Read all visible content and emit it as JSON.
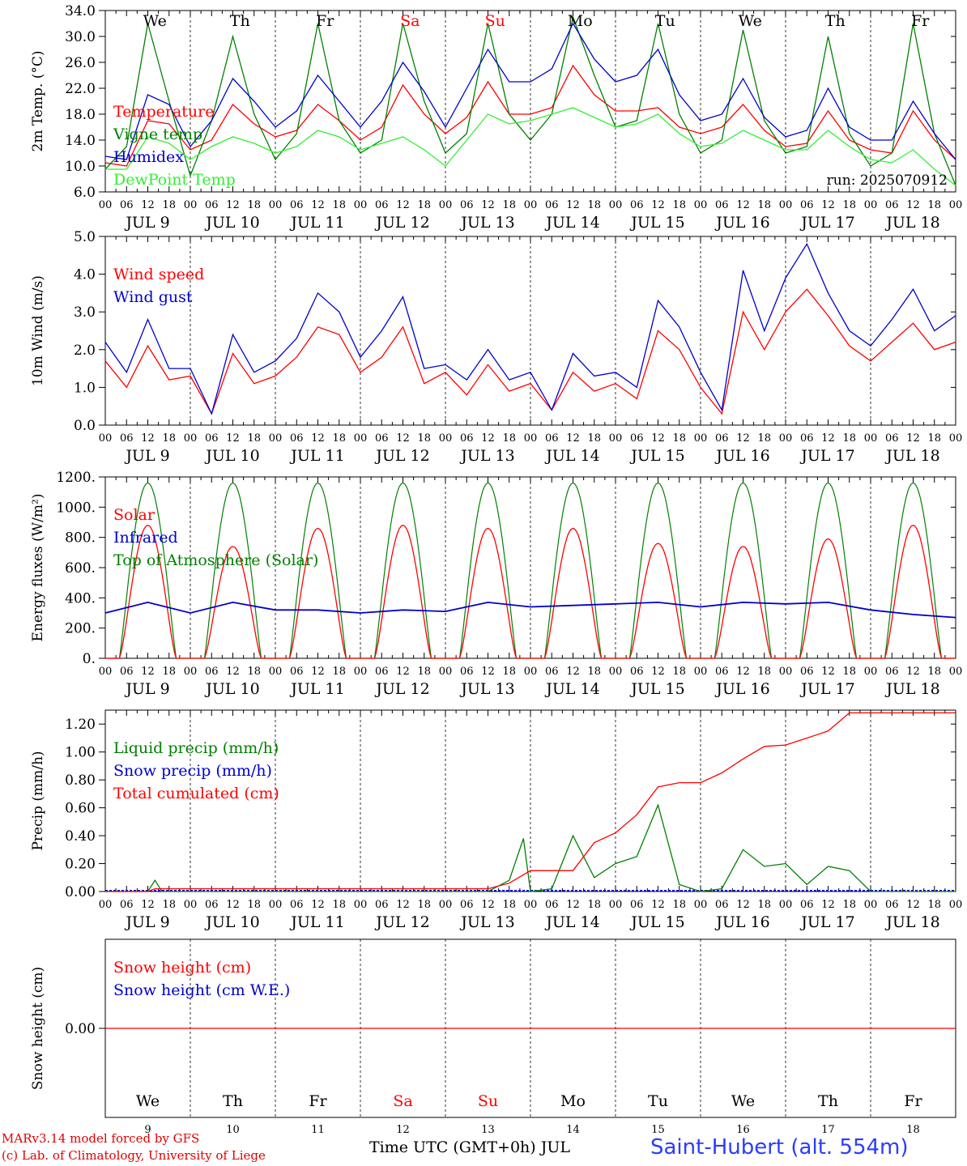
{
  "meta": {
    "day_labels": [
      "We",
      "Th",
      "Fr",
      "Sa",
      "Su",
      "Mo",
      "Tu",
      "We",
      "Th",
      "Fr"
    ],
    "weekend_color": "#ff0000",
    "weekend_days": [
      "Sa",
      "Su"
    ],
    "date_labels": [
      "JUL  9",
      "JUL 10",
      "JUL 11",
      "JUL 12",
      "JUL 13",
      "JUL 14",
      "JUL 15",
      "JUL 16",
      "JUL 17",
      "JUL 18"
    ],
    "hour_ticks": [
      "00",
      "06",
      "12",
      "18"
    ],
    "run_label": "run: 2025070912",
    "footer_model": "MARv3.14 model forced by GFS",
    "footer_lab": "(c) Lab. of Climatology, University of Liege",
    "footer_time": "Time UTC (GMT+0h) JUL",
    "footer_station": "Saint-Hubert (alt. 554m)",
    "bottom_day_numbers": [
      "9",
      "10",
      "11",
      "12",
      "13",
      "14",
      "15",
      "16",
      "17",
      "18"
    ]
  },
  "chart_data": [
    {
      "type": "line",
      "ylabel": "2m Temp. (°C)",
      "ylim": [
        6.0,
        34.0
      ],
      "yticks": [
        "6.0",
        "10.0",
        "14.0",
        "18.0",
        "22.0",
        "26.0",
        "30.0",
        "34.0"
      ],
      "x_hours": [
        0,
        6,
        12,
        18,
        24,
        30,
        36,
        42,
        48,
        54,
        60,
        66,
        72,
        78,
        84,
        90,
        96,
        102,
        108,
        114,
        120,
        126,
        132,
        138,
        144,
        150,
        156,
        162,
        168,
        174,
        180,
        186,
        192,
        198,
        204,
        210,
        216,
        222,
        228,
        234,
        240
      ],
      "series": [
        {
          "name": "Temperature",
          "color": "#ff0000",
          "values": [
            10.5,
            10.0,
            17.0,
            16.5,
            12.5,
            14.0,
            19.5,
            16.5,
            14.5,
            15.5,
            19.5,
            17.0,
            14.0,
            16.0,
            22.5,
            18.0,
            15.0,
            17.5,
            23.0,
            18.0,
            18.0,
            19.0,
            25.5,
            21.0,
            18.5,
            18.5,
            19.0,
            16.0,
            15.0,
            16.0,
            19.5,
            15.5,
            13.0,
            13.5,
            18.5,
            14.0,
            12.5,
            12.0,
            18.5,
            14.0,
            11.0
          ]
        },
        {
          "name": "Vigne temp",
          "color": "#008000",
          "values": [
            9.5,
            13.0,
            32.0,
            20.0,
            8.5,
            17.0,
            30.0,
            18.0,
            11.0,
            15.0,
            32.0,
            17.0,
            12.0,
            14.0,
            32.0,
            20.0,
            12.0,
            15.0,
            32.0,
            18.0,
            14.0,
            18.0,
            33.0,
            24.0,
            16.0,
            17.0,
            32.0,
            18.0,
            12.0,
            14.0,
            31.0,
            17.0,
            12.0,
            13.0,
            30.0,
            15.0,
            10.0,
            12.0,
            32.0,
            15.0,
            7.0
          ]
        },
        {
          "name": "Humidex",
          "color": "#0000cc",
          "values": [
            11.5,
            11.0,
            21.0,
            19.5,
            13.0,
            17.0,
            23.5,
            20.0,
            16.0,
            18.5,
            24.0,
            20.0,
            16.0,
            20.0,
            26.0,
            21.5,
            16.0,
            22.0,
            28.0,
            23.0,
            23.0,
            25.0,
            32.0,
            26.5,
            23.0,
            24.0,
            28.0,
            21.0,
            17.0,
            18.0,
            23.5,
            17.5,
            14.5,
            15.5,
            22.0,
            16.0,
            14.0,
            14.0,
            20.0,
            15.0,
            11.0
          ]
        },
        {
          "name": "DewPoint Temp",
          "color": "#33ee33",
          "values": [
            9.5,
            9.5,
            14.5,
            13.5,
            11.0,
            13.0,
            14.5,
            13.5,
            12.0,
            13.0,
            15.5,
            14.5,
            12.5,
            13.5,
            14.5,
            12.5,
            10.0,
            14.0,
            18.0,
            16.5,
            17.0,
            18.0,
            19.0,
            17.5,
            16.0,
            16.5,
            18.0,
            15.0,
            13.0,
            13.5,
            15.5,
            14.0,
            12.5,
            12.5,
            15.5,
            13.0,
            11.0,
            10.5,
            12.5,
            9.5,
            7.0
          ]
        }
      ]
    },
    {
      "type": "line",
      "ylabel": "10m Wind (m/s)",
      "ylim": [
        0.0,
        5.0
      ],
      "yticks": [
        "0.0",
        "1.0",
        "2.0",
        "3.0",
        "4.0",
        "5.0"
      ],
      "x_hours": [
        0,
        6,
        12,
        18,
        24,
        30,
        36,
        42,
        48,
        54,
        60,
        66,
        72,
        78,
        84,
        90,
        96,
        102,
        108,
        114,
        120,
        126,
        132,
        138,
        144,
        150,
        156,
        162,
        168,
        174,
        180,
        186,
        192,
        198,
        204,
        210,
        216,
        222,
        228,
        234,
        240
      ],
      "series": [
        {
          "name": "Wind speed",
          "color": "#ff0000",
          "values": [
            1.7,
            1.0,
            2.1,
            1.2,
            1.3,
            0.3,
            1.9,
            1.1,
            1.3,
            1.8,
            2.6,
            2.4,
            1.4,
            1.8,
            2.6,
            1.1,
            1.4,
            0.8,
            1.6,
            0.9,
            1.1,
            0.4,
            1.4,
            0.9,
            1.1,
            0.7,
            2.5,
            2.0,
            1.0,
            0.3,
            3.0,
            2.0,
            3.0,
            3.6,
            2.9,
            2.1,
            1.7,
            2.2,
            2.7,
            2.0,
            2.2
          ]
        },
        {
          "name": "Wind gust",
          "color": "#0000cc",
          "values": [
            2.2,
            1.4,
            2.8,
            1.5,
            1.5,
            0.3,
            2.4,
            1.4,
            1.7,
            2.3,
            3.5,
            3.0,
            1.8,
            2.5,
            3.4,
            1.5,
            1.6,
            1.2,
            2.0,
            1.2,
            1.4,
            0.4,
            1.9,
            1.3,
            1.4,
            1.0,
            3.3,
            2.6,
            1.4,
            0.4,
            4.1,
            2.5,
            3.9,
            4.8,
            3.5,
            2.5,
            2.1,
            2.8,
            3.6,
            2.5,
            2.9
          ]
        }
      ]
    },
    {
      "type": "line",
      "ylabel": "Energy fluxes (W/m²)",
      "ylim": [
        0,
        1200
      ],
      "yticks": [
        "0.",
        "200.",
        "400.",
        "600.",
        "800.",
        "1000.",
        "1200."
      ],
      "solar_peak": [
        880,
        740,
        860,
        880,
        860,
        860,
        760,
        740,
        790,
        880
      ],
      "toa_peak": 1160,
      "infrared_hours": [
        0,
        12,
        24,
        36,
        48,
        60,
        72,
        84,
        96,
        108,
        120,
        132,
        144,
        156,
        168,
        180,
        192,
        204,
        216,
        228,
        240
      ],
      "series": [
        {
          "name": "Solar",
          "color": "#ff0000"
        },
        {
          "name": "Infrared",
          "color": "#0000cc",
          "values": [
            300,
            370,
            300,
            370,
            320,
            320,
            300,
            320,
            310,
            370,
            340,
            350,
            360,
            370,
            340,
            370,
            360,
            370,
            320,
            290,
            270
          ]
        },
        {
          "name": "Top of Atmosphere (Solar)",
          "color": "#008000"
        }
      ]
    },
    {
      "type": "line",
      "ylabel": "Precip (mm/h)",
      "ylim": [
        0.0,
        1.3
      ],
      "yticks": [
        "0.00",
        "0.20",
        "0.40",
        "0.60",
        "0.80",
        "1.00",
        "1.20"
      ],
      "series": [
        {
          "name": "Liquid precip (mm/h)",
          "color": "#008000",
          "x_hours": [
            0,
            12,
            14,
            16,
            24,
            60,
            96,
            108,
            114,
            118,
            120,
            126,
            132,
            138,
            144,
            150,
            156,
            162,
            168,
            174,
            180,
            186,
            192,
            198,
            204,
            210,
            216,
            240
          ],
          "values": [
            0,
            0,
            0.08,
            0,
            0,
            0,
            0,
            0,
            0.08,
            0.38,
            0,
            0.02,
            0.4,
            0.1,
            0.2,
            0.25,
            0.62,
            0.05,
            0,
            0.02,
            0.3,
            0.18,
            0.2,
            0.05,
            0.18,
            0.15,
            0,
            0
          ]
        },
        {
          "name": "Snow precip (mm/h)",
          "color": "#0000cc",
          "x_hours": [
            0,
            240
          ],
          "values": [
            0,
            0
          ]
        },
        {
          "name": "Total cumulated (cm)",
          "color": "#ff0000",
          "x_hours": [
            0,
            12,
            14,
            108,
            114,
            120,
            132,
            138,
            144,
            150,
            156,
            162,
            168,
            174,
            180,
            186,
            192,
            198,
            204,
            210,
            216,
            240
          ],
          "values": [
            0,
            0,
            0.02,
            0.02,
            0.06,
            0.15,
            0.15,
            0.35,
            0.42,
            0.55,
            0.75,
            0.78,
            0.78,
            0.85,
            0.95,
            1.04,
            1.05,
            1.1,
            1.15,
            1.28,
            1.28,
            1.28
          ]
        }
      ]
    },
    {
      "type": "line",
      "ylabel": "Snow height (cm)",
      "yticks": [
        "0.00"
      ],
      "series": [
        {
          "name": "Snow height (cm)",
          "color": "#ff0000",
          "values": [
            0,
            0
          ]
        },
        {
          "name": "Snow height (cm W.E.)",
          "color": "#0000cc",
          "values": [
            0,
            0
          ]
        }
      ]
    }
  ]
}
